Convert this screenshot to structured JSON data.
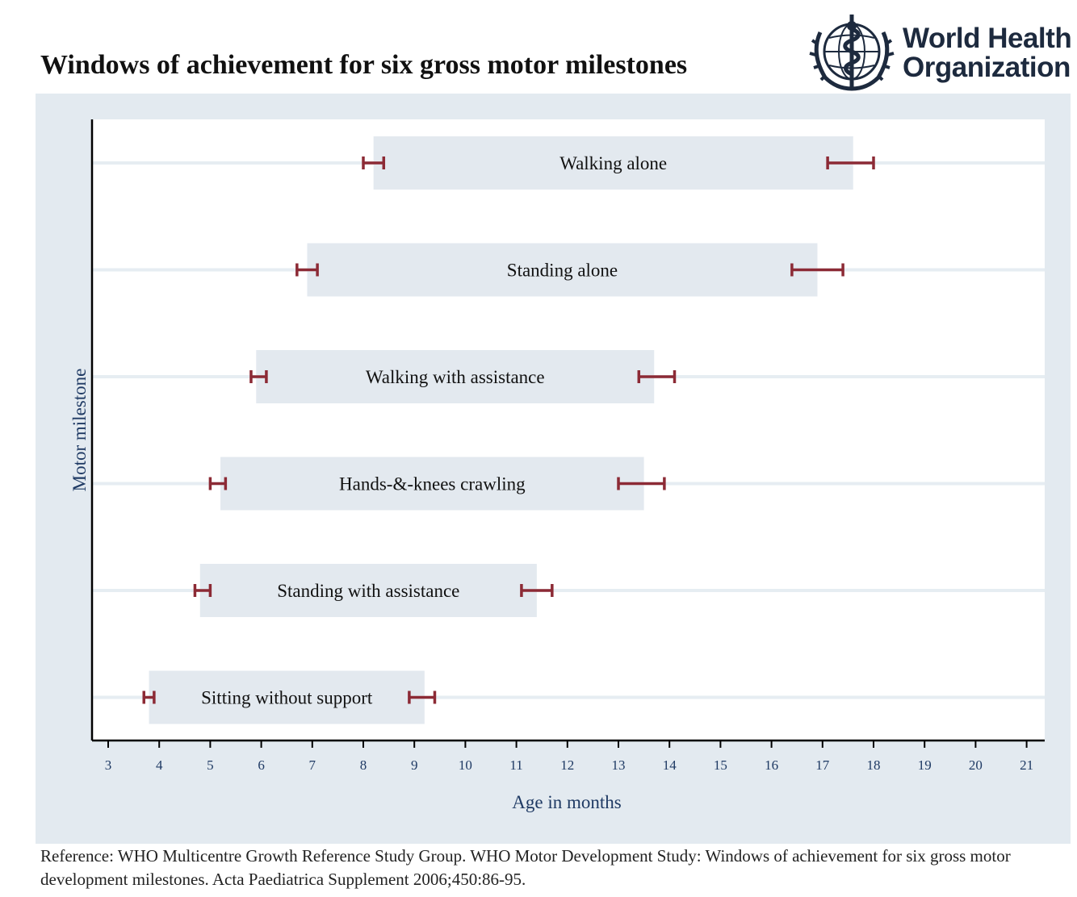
{
  "title": "Windows of achievement for six gross motor milestones",
  "logo": {
    "line1": "World Health",
    "line2": "Organization"
  },
  "reference": "Reference: WHO Multicentre Growth Reference Study Group. WHO Motor Development Study: Windows of achievement for six gross motor development milestones. Acta Paediatrica Supplement 2006;450:86-95.",
  "colors": {
    "panel": "#e3eaf0",
    "plot": "#ffffff",
    "bar": "#e3e9ef",
    "errorbar": "#8c2a35",
    "axis_text": "#1f3a64"
  },
  "chart_data": {
    "type": "bar",
    "orientation": "horizontal",
    "title": "Windows of achievement for six gross motor milestones",
    "xlabel": "Age in months",
    "ylabel": "Motor milestone",
    "xlim": [
      2.7,
      21.3
    ],
    "xticks": [
      3,
      4,
      5,
      6,
      7,
      8,
      9,
      10,
      11,
      12,
      13,
      14,
      15,
      16,
      17,
      18,
      19,
      20,
      21
    ],
    "grid": "horizontal",
    "categories": [
      "Walking alone",
      "Standing alone",
      "Walking with assistance",
      "Hands-&-knees crawling",
      "Standing with assistance",
      "Sitting without support"
    ],
    "windows": [
      {
        "start": 8.2,
        "end": 17.6,
        "start_ci": [
          8.0,
          8.4
        ],
        "end_ci": [
          17.1,
          18.0
        ]
      },
      {
        "start": 6.9,
        "end": 16.9,
        "start_ci": [
          6.7,
          7.1
        ],
        "end_ci": [
          16.4,
          17.4
        ]
      },
      {
        "start": 5.9,
        "end": 13.7,
        "start_ci": [
          5.8,
          6.1
        ],
        "end_ci": [
          13.4,
          14.1
        ]
      },
      {
        "start": 5.2,
        "end": 13.5,
        "start_ci": [
          5.0,
          5.3
        ],
        "end_ci": [
          13.0,
          13.9
        ]
      },
      {
        "start": 4.8,
        "end": 11.4,
        "start_ci": [
          4.7,
          5.0
        ],
        "end_ci": [
          11.1,
          11.7
        ]
      },
      {
        "start": 3.8,
        "end": 9.2,
        "start_ci": [
          3.7,
          3.9
        ],
        "end_ci": [
          8.9,
          9.4
        ]
      }
    ]
  }
}
